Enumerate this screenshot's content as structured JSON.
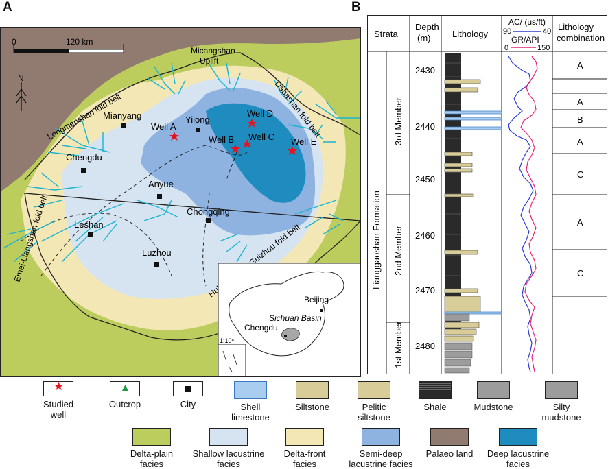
{
  "panel_a": {
    "letter": "A",
    "scale": {
      "zero": "0",
      "distance": "120 km"
    },
    "north": "N",
    "regions": {
      "micangshan": [
        "Micangshan",
        "Uplift"
      ],
      "longmenshan": "Longmenshan fold belt",
      "dabashan": "Dabashan fold belt",
      "emei": "Emei-Liangshan fold belt",
      "hubei": "Hubei-Hunan-Guizhou fold belt"
    },
    "cities": [
      "Mianyang",
      "Yilong",
      "Chengdu",
      "Anyue",
      "Chongqing",
      "Leshan",
      "Luzhou"
    ],
    "wells": [
      "Well A",
      "Well B",
      "Well C",
      "Well D",
      "Well E"
    ],
    "inset": {
      "beijing": "Beijing",
      "basin": "Sichuan Basin",
      "chengdu": "Chengdu",
      "ratio": "1:10⁶"
    }
  },
  "panel_b": {
    "letter": "B",
    "headers": {
      "strata": "Strata",
      "depth": "Depth",
      "depth_unit": "(m)",
      "lithology": "Lithology",
      "ac": "AC/ (us/ft)",
      "ac_range": [
        "90",
        "40"
      ],
      "gr": "GR/API",
      "gr_range": [
        "0",
        "150"
      ],
      "combo": [
        "Lithology",
        "combination"
      ]
    },
    "formation": "Lianggaoshan Formation",
    "members": [
      "3rd Member",
      "2nd Member",
      "1st Member"
    ],
    "depth_ticks": [
      "2430",
      "2440",
      "2450",
      "2460",
      "2470",
      "2480"
    ],
    "combinations": [
      "A",
      "",
      "A",
      "B",
      "A",
      "C",
      "A",
      "C"
    ],
    "colors": {
      "ac_log": "#2b3bd0",
      "gr_log": "#e8207a",
      "shale": "#2a2a2a",
      "siltstone": "#d8cc98",
      "shell_limestone": "#a8cdee",
      "mudstone": "#9c9c9c"
    }
  },
  "legend": {
    "row1": [
      "Studied well",
      "Outcrop",
      "City",
      "Shell limestone",
      "Siltstone",
      "Pelitic siltstone",
      "Shale",
      "Mudstone",
      "Silty mudstone"
    ],
    "row2": [
      "Delta-plain facies",
      "Shallow lacustrine facies",
      "Delta-front facies",
      "Semi-deep lacustrine facies",
      "Palaeo land",
      "Deep lacustrine facies"
    ],
    "colors": {
      "delta_plain": "#bccd5e",
      "shallow": "#d6e4f1",
      "delta_front": "#f3e7b6",
      "semi_deep": "#8fb3e0",
      "palaeo": "#917a6f",
      "deep": "#1f8cc0",
      "star": "#e6141e",
      "outcrop": "#1a9a3a",
      "river": "#1ab4d0"
    }
  }
}
